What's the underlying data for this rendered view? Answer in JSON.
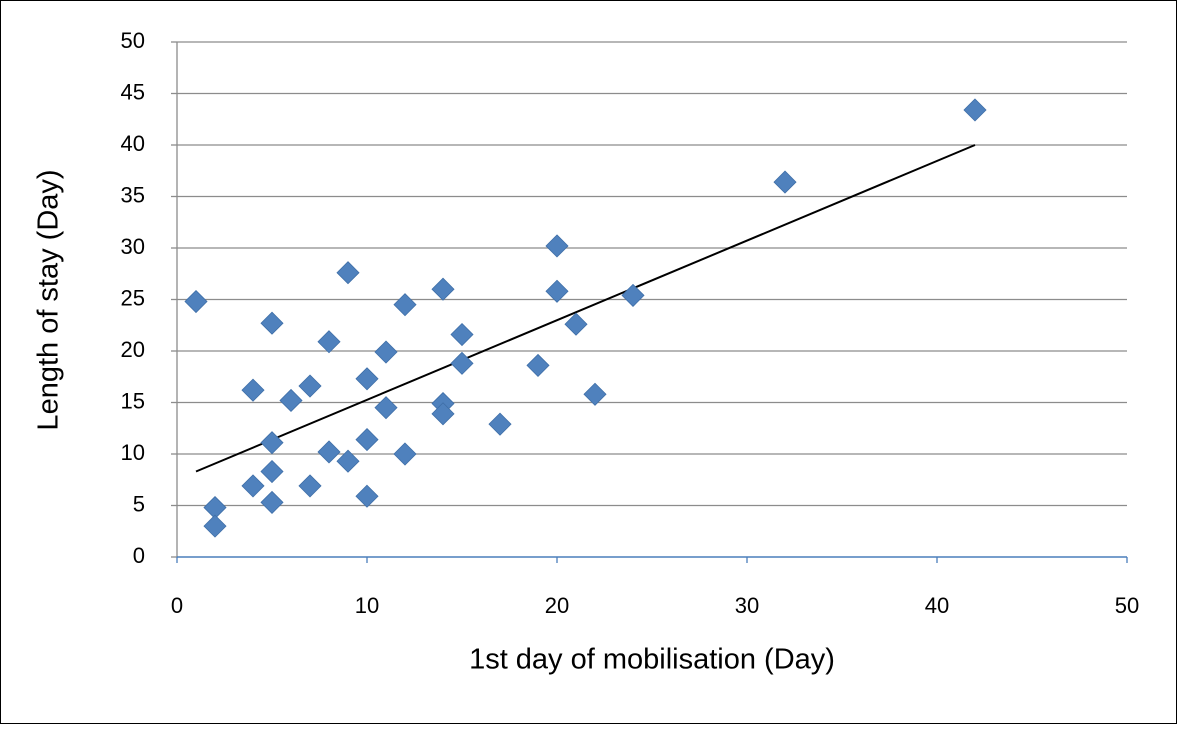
{
  "chart_data": {
    "type": "scatter",
    "x_label": "1st day of mobilisation (Day)",
    "y_label": "Length of stay (Day)",
    "xlim": [
      0,
      50
    ],
    "xticks": [
      0,
      10,
      20,
      30,
      40,
      50
    ],
    "ylim": [
      0,
      50
    ],
    "yticks": [
      0,
      5,
      10,
      15,
      20,
      25,
      30,
      35,
      40,
      45,
      50
    ],
    "grid": true,
    "series": [
      {
        "color": "#4f81bd",
        "x": [
          1,
          2,
          2,
          4,
          4,
          5,
          5,
          5,
          5,
          6,
          7,
          7,
          8,
          8,
          9,
          9,
          10,
          10,
          10,
          11,
          11,
          12,
          12,
          14,
          14,
          14,
          15,
          15,
          17,
          19,
          20,
          20,
          21,
          22,
          24,
          32,
          42
        ],
        "values": [
          24.8,
          4.8,
          3.0,
          16.2,
          6.9,
          22.7,
          11.1,
          8.3,
          5.3,
          15.2,
          16.6,
          6.9,
          20.9,
          10.2,
          27.6,
          9.3,
          17.3,
          11.4,
          5.9,
          19.9,
          14.5,
          24.5,
          10.0,
          26.0,
          14.9,
          13.9,
          21.6,
          18.8,
          12.9,
          18.6,
          30.2,
          25.8,
          22.6,
          15.8,
          25.4,
          36.4,
          43.4
        ]
      }
    ],
    "trendline": {
      "color": "#000000",
      "x": [
        1,
        42
      ],
      "values": [
        8.3,
        40.0
      ]
    }
  }
}
